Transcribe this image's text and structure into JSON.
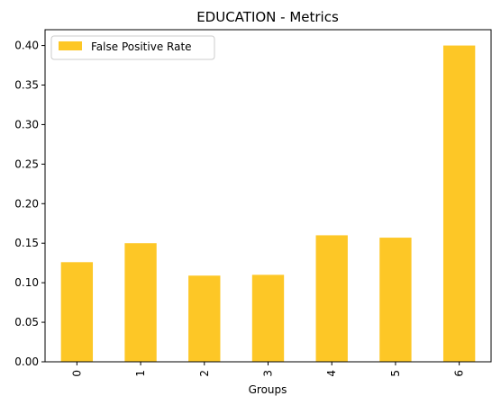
{
  "chart_data": {
    "type": "bar",
    "title": "EDUCATION - Metrics",
    "xlabel": "Groups",
    "ylabel": "",
    "categories": [
      "0",
      "1",
      "2",
      "3",
      "4",
      "5",
      "6"
    ],
    "series": [
      {
        "name": "False Positive Rate",
        "values": [
          0.126,
          0.15,
          0.109,
          0.11,
          0.16,
          0.157,
          0.4
        ],
        "color": "#fdc726"
      }
    ],
    "ylim": [
      0,
      0.42
    ],
    "yticks": [
      "0.00",
      "0.05",
      "0.10",
      "0.15",
      "0.20",
      "0.25",
      "0.30",
      "0.35",
      "0.40"
    ],
    "legend_position": "top-left",
    "grid": false
  }
}
